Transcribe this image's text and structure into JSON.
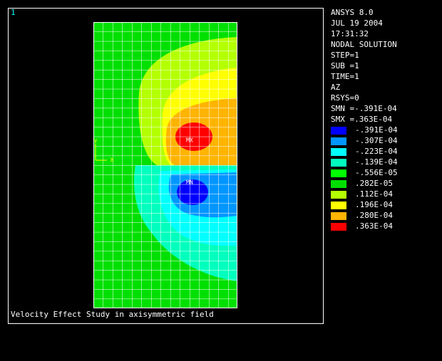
{
  "window_number": "1",
  "info": [
    "ANSYS 8.0",
    "JUL 19 2004",
    "17:31:32",
    "NODAL SOLUTION",
    "STEP=1",
    "SUB =1",
    "TIME=1",
    "AZ",
    "RSYS=0",
    "SMN =-.391E-04",
    "SMX =.363E-04"
  ],
  "legend": [
    {
      "label": "-.391E-04",
      "color": "#0000ff"
    },
    {
      "label": "-.307E-04",
      "color": "#0096ff"
    },
    {
      "label": "-.223E-04",
      "color": "#00ffff"
    },
    {
      "label": "-.139E-04",
      "color": "#00ffbe"
    },
    {
      "label": "-.556E-05",
      "color": "#00ff00"
    },
    {
      "label": ".282E-05",
      "color": "#00e000"
    },
    {
      "label": ".112E-04",
      "color": "#b4ff00"
    },
    {
      "label": ".196E-04",
      "color": "#ffff00"
    },
    {
      "label": ".280E-04",
      "color": "#ffb400"
    },
    {
      "label": ".363E-04",
      "color": "#ff0000"
    }
  ],
  "plot": {
    "max_label": "MX",
    "min_label": "MN",
    "axis_labels": [
      "Y",
      "X"
    ]
  },
  "footer": "Velocity Effect Study in axisymmetric field"
}
